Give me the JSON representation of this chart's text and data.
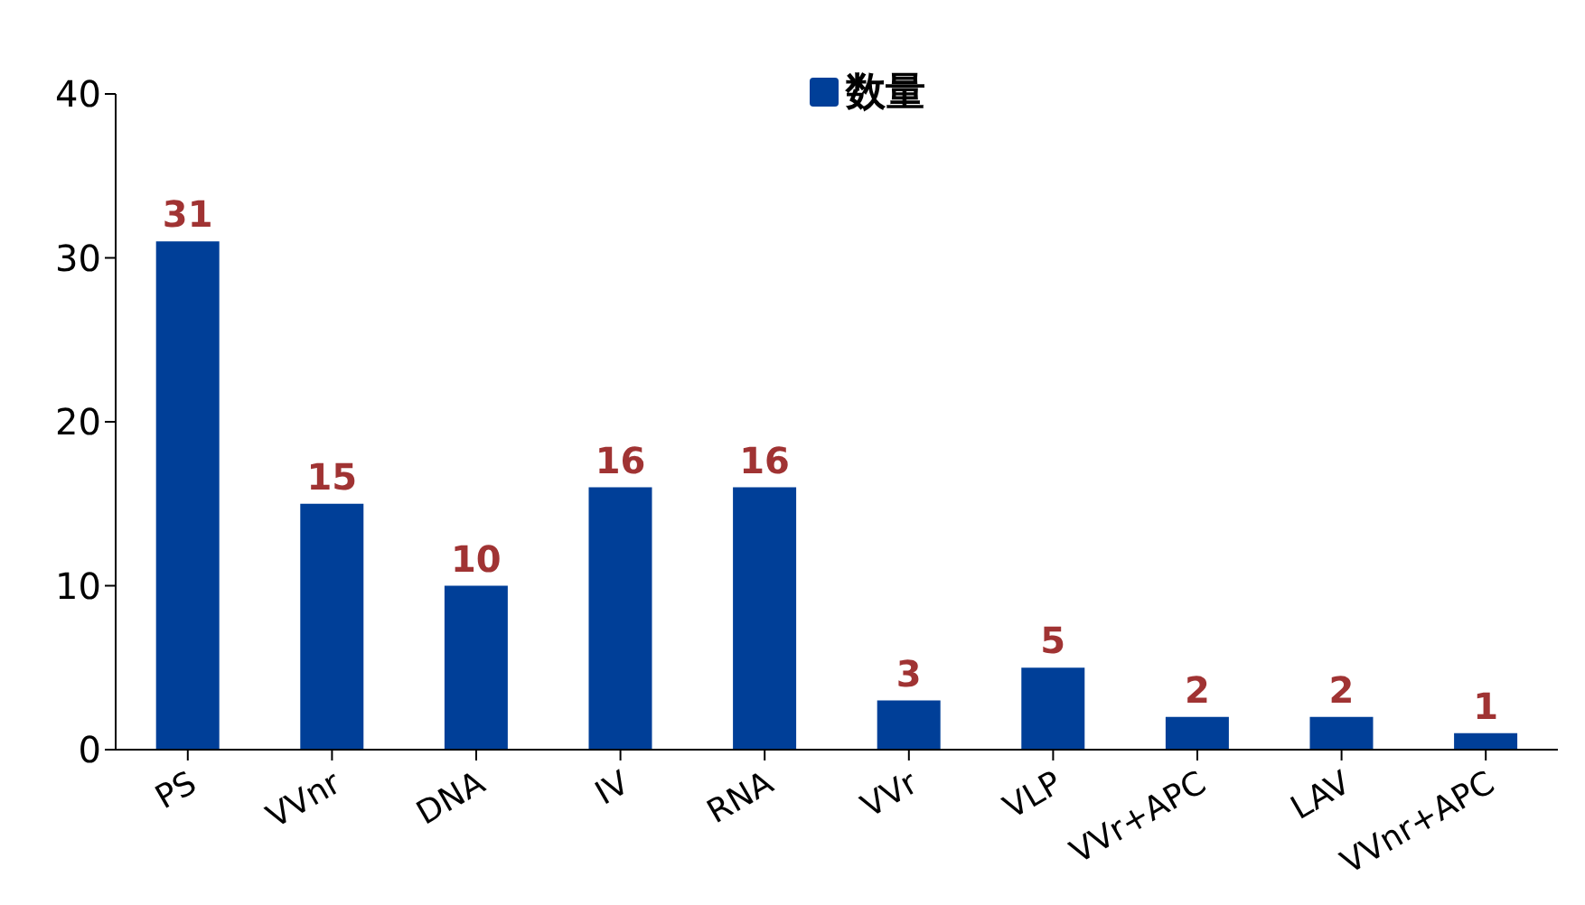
{
  "chart_data": {
    "type": "bar",
    "categories": [
      "PS",
      "VVnr",
      "DNA",
      "IV",
      "RNA",
      "VVr",
      "VLP",
      "VVr+APC",
      "LAV",
      "VVnr+APC"
    ],
    "series": [
      {
        "name": "数量",
        "color": "#003f98",
        "values": [
          31,
          15,
          10,
          16,
          16,
          3,
          5,
          2,
          2,
          1
        ]
      }
    ],
    "ylim": [
      0,
      40
    ],
    "yticks": [
      0,
      10,
      20,
      30,
      40
    ],
    "grid": false,
    "legend": "top",
    "data_labels": true
  }
}
